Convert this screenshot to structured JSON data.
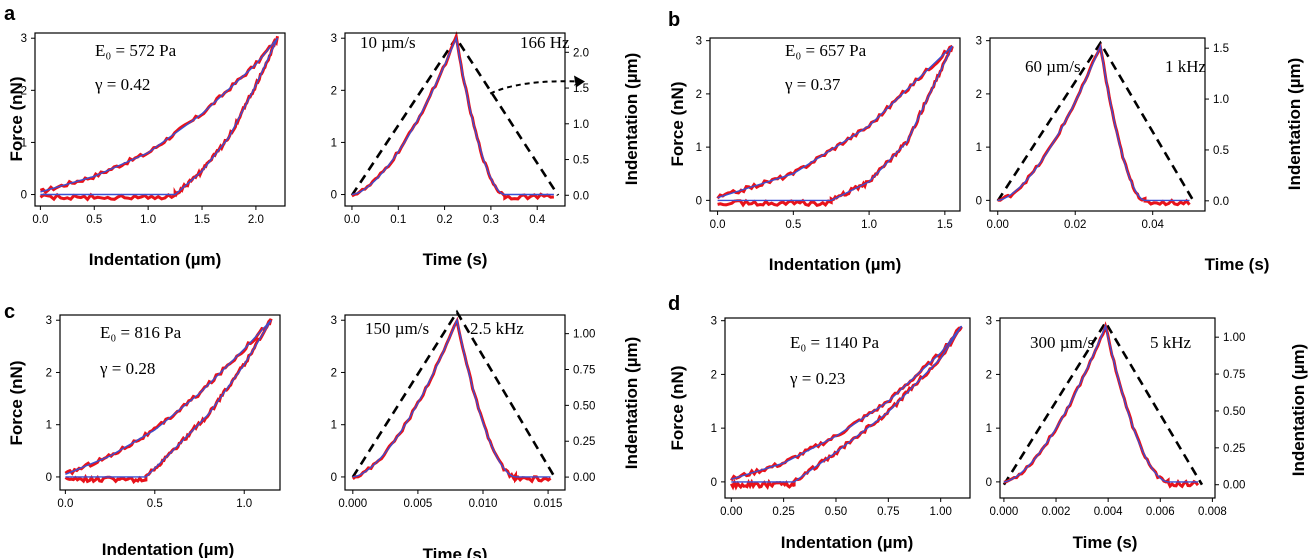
{
  "chart_data": [
    {
      "panel": "a",
      "type": "line",
      "side": "force",
      "xlabel": "Indentation (µm)",
      "ylabel": "Force (nN)",
      "xlim": [
        -0.05,
        2.27
      ],
      "ylim": [
        -0.22,
        3.1
      ],
      "xticks": [
        0.0,
        0.5,
        1.0,
        1.5,
        2.0
      ],
      "xtick_labels": [
        "0.0",
        "0.5",
        "1.0",
        "1.5",
        "2.0"
      ],
      "yticks": [
        0,
        1,
        2,
        3
      ],
      "ytick_labels": [
        "0",
        "1",
        "2",
        "3"
      ],
      "annotations": [
        "E₀ = 572 Pa",
        "γ = 0.42"
      ],
      "max_x": 2.2,
      "max_force": 3.0,
      "gamma": 0.42,
      "contact": 1.25,
      "series": [
        {
          "role": "approach",
          "x": [
            0.0,
            0.5,
            1.0,
            1.5,
            2.0,
            2.2
          ],
          "y": [
            0.05,
            0.35,
            0.8,
            1.55,
            2.5,
            3.0
          ]
        },
        {
          "role": "retract",
          "x": [
            1.25,
            1.5,
            1.75,
            2.0,
            2.2
          ],
          "y": [
            0.0,
            0.45,
            1.1,
            2.1,
            3.0
          ]
        }
      ]
    },
    {
      "panel": "a",
      "type": "line",
      "side": "time",
      "xlabel": "Time (s)",
      "ylabel_right": "Indentation (µm)",
      "xlim": [
        -0.015,
        0.46
      ],
      "ylim": [
        -0.22,
        3.1
      ],
      "y2lim": [
        -0.15,
        2.27
      ],
      "xticks": [
        0.0,
        0.1,
        0.2,
        0.3,
        0.4
      ],
      "xtick_labels": [
        "0.0",
        "0.1",
        "0.2",
        "0.3",
        "0.4"
      ],
      "yticks": [
        0,
        1,
        2,
        3
      ],
      "ytick_labels": [
        "0",
        "1",
        "2",
        "3"
      ],
      "y2ticks": [
        0.0,
        0.5,
        1.0,
        1.5,
        2.0
      ],
      "y2tick_labels": [
        "0.0",
        "0.5",
        "1.0",
        "1.5",
        "2.0"
      ],
      "annotations": [
        "10 µm/s",
        "166 Hz"
      ],
      "t_peak": 0.225,
      "t_end": 0.445,
      "peak_force": 3.0,
      "peak_indentation": 2.2,
      "end_force_time": 0.33,
      "has_arrow": true
    },
    {
      "panel": "b",
      "type": "line",
      "side": "force",
      "xlabel": "Indentation (µm)",
      "ylabel": "Force (nN)",
      "xlim": [
        -0.05,
        1.6
      ],
      "ylim": [
        -0.2,
        3.05
      ],
      "xticks": [
        0.0,
        0.5,
        1.0,
        1.5
      ],
      "xtick_labels": [
        "0.0",
        "0.5",
        "1.0",
        "1.5"
      ],
      "yticks": [
        0,
        1,
        2,
        3
      ],
      "ytick_labels": [
        "0",
        "1",
        "2",
        "3"
      ],
      "annotations": [
        "E₀ = 657 Pa",
        "γ = 0.37"
      ],
      "max_x": 1.55,
      "max_force": 2.9,
      "gamma": 0.37,
      "contact": 0.75,
      "series": [
        {
          "role": "approach",
          "x": [
            0.0,
            0.5,
            1.0,
            1.55
          ],
          "y": [
            0.05,
            0.5,
            1.4,
            2.9
          ]
        },
        {
          "role": "retract",
          "x": [
            0.75,
            1.0,
            1.25,
            1.55
          ],
          "y": [
            0.0,
            0.35,
            1.1,
            2.9
          ]
        }
      ]
    },
    {
      "panel": "b",
      "type": "line",
      "side": "time",
      "xlabel": "Time (s)",
      "ylabel_right": "Indentation (µm)",
      "xlim": [
        -0.002,
        0.0535
      ],
      "ylim": [
        -0.2,
        3.05
      ],
      "y2lim": [
        -0.1,
        1.6
      ],
      "xticks": [
        0.0,
        0.02,
        0.04
      ],
      "xtick_labels": [
        "0.00",
        "0.02",
        "0.04"
      ],
      "yticks": [
        0,
        1,
        2,
        3
      ],
      "ytick_labels": [
        "0",
        "1",
        "2",
        "3"
      ],
      "y2ticks": [
        0.0,
        0.5,
        1.0,
        1.5
      ],
      "y2tick_labels": [
        "0.0",
        "0.5",
        "1.0",
        "1.5"
      ],
      "annotations": [
        "60 µm/s",
        "1 kHz"
      ],
      "t_peak": 0.0265,
      "t_end": 0.0505,
      "peak_force": 2.9,
      "peak_indentation": 1.55,
      "end_force_time": 0.038,
      "has_arrow": false
    },
    {
      "panel": "c",
      "type": "line",
      "side": "force",
      "xlabel": "Indentation (µm)",
      "ylabel": "Force (nN)",
      "xlim": [
        -0.03,
        1.2
      ],
      "ylim": [
        -0.25,
        3.1
      ],
      "xticks": [
        0.0,
        0.5,
        1.0
      ],
      "xtick_labels": [
        "0.0",
        "0.5",
        "1.0"
      ],
      "yticks": [
        0,
        1,
        2,
        3
      ],
      "ytick_labels": [
        "0",
        "1",
        "2",
        "3"
      ],
      "annotations": [
        "E₀ = 816 Pa",
        "γ = 0.28"
      ],
      "max_x": 1.15,
      "max_force": 3.0,
      "gamma": 0.28,
      "contact": 0.45,
      "series": [
        {
          "role": "approach",
          "x": [
            0.0,
            0.25,
            0.5,
            0.75,
            1.0,
            1.15
          ],
          "y": [
            0.05,
            0.4,
            0.9,
            1.6,
            2.45,
            3.0
          ]
        },
        {
          "role": "retract",
          "x": [
            0.45,
            0.6,
            0.8,
            1.0,
            1.15
          ],
          "y": [
            0.0,
            0.5,
            1.2,
            2.15,
            3.0
          ]
        }
      ]
    },
    {
      "panel": "c",
      "type": "line",
      "side": "time",
      "xlabel": "Time (s)",
      "ylabel_right": "Indentation (µm)",
      "xlim": [
        -0.0006,
        0.0163
      ],
      "ylim": [
        -0.25,
        3.1
      ],
      "y2lim": [
        -0.09,
        1.13
      ],
      "xticks": [
        0.0,
        0.005,
        0.01,
        0.015
      ],
      "xtick_labels": [
        "0.000",
        "0.005",
        "0.010",
        "0.015"
      ],
      "yticks": [
        0,
        1,
        2,
        3
      ],
      "ytick_labels": [
        "0",
        "1",
        "2",
        "3"
      ],
      "y2ticks": [
        0.0,
        0.25,
        0.5,
        0.75,
        1.0
      ],
      "y2tick_labels": [
        "0.00",
        "0.25",
        "0.50",
        "0.75",
        "1.00"
      ],
      "annotations": [
        "150  µm/s",
        "2.5 kHz"
      ],
      "t_peak": 0.008,
      "t_end": 0.0155,
      "peak_force": 3.0,
      "peak_indentation": 1.15,
      "end_force_time": 0.0125,
      "has_arrow": false
    },
    {
      "panel": "d",
      "type": "line",
      "side": "force",
      "xlabel": "Indentation (µm)",
      "ylabel": "Force (nN)",
      "xlim": [
        -0.03,
        1.14
      ],
      "ylim": [
        -0.3,
        3.05
      ],
      "xticks": [
        0.0,
        0.25,
        0.5,
        0.75,
        1.0
      ],
      "xtick_labels": [
        "0.00",
        "0.25",
        "0.50",
        "0.75",
        "1.00"
      ],
      "yticks": [
        0,
        1,
        2,
        3
      ],
      "ytick_labels": [
        "0",
        "1",
        "2",
        "3"
      ],
      "annotations": [
        "E₀ = 1140 Pa",
        "γ = 0.23"
      ],
      "max_x": 1.1,
      "max_force": 2.9,
      "gamma": 0.23,
      "contact": 0.3,
      "series": [
        {
          "role": "approach",
          "x": [
            0.0,
            0.25,
            0.5,
            0.75,
            1.0,
            1.1
          ],
          "y": [
            0.05,
            0.35,
            0.85,
            1.5,
            2.4,
            2.9
          ]
        },
        {
          "role": "retract",
          "x": [
            0.3,
            0.5,
            0.75,
            1.0,
            1.1
          ],
          "y": [
            0.0,
            0.55,
            1.3,
            2.3,
            2.9
          ]
        }
      ]
    },
    {
      "panel": "d",
      "type": "line",
      "side": "time",
      "xlabel": "Time (s)",
      "ylabel_right": "Indentation (µm)",
      "xlim": [
        -0.00015,
        0.0081
      ],
      "ylim": [
        -0.3,
        3.05
      ],
      "y2lim": [
        -0.09,
        1.13
      ],
      "xticks": [
        0.0,
        0.002,
        0.004,
        0.006,
        0.008
      ],
      "xtick_labels": [
        "0.000",
        "0.002",
        "0.004",
        "0.006",
        "0.008"
      ],
      "yticks": [
        0,
        1,
        2,
        3
      ],
      "ytick_labels": [
        "0",
        "1",
        "2",
        "3"
      ],
      "y2ticks": [
        0.0,
        0.25,
        0.5,
        0.75,
        1.0
      ],
      "y2tick_labels": [
        "0.00",
        "0.25",
        "0.50",
        "0.75",
        "1.00"
      ],
      "annotations": [
        "300 µm/s",
        "5 kHz"
      ],
      "t_peak": 0.0039,
      "t_end": 0.0076,
      "peak_force": 2.9,
      "peak_indentation": 1.1,
      "end_force_time": 0.0063,
      "has_arrow": false
    }
  ],
  "colors": {
    "measured": "#e8121a",
    "fit": "#3a4fd1",
    "indentation": "#000000"
  }
}
